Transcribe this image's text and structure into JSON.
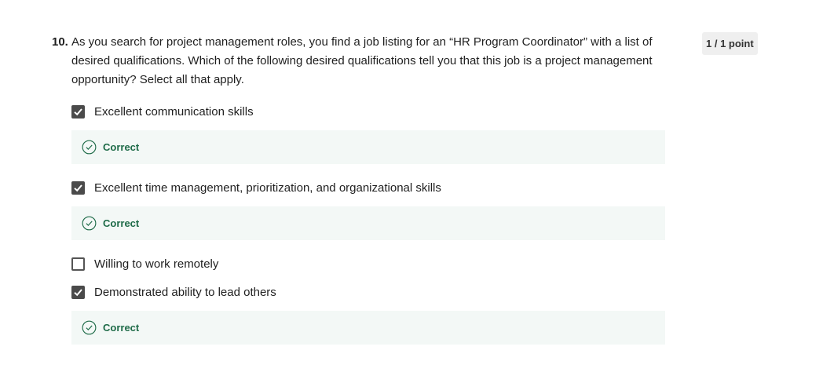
{
  "question": {
    "number": "10.",
    "text": "As you search for project management roles, you find a job listing for an “HR Program Coordinator” with a list of desired qualifications. Which of the following desired qualifications tell you that this job is a project management opportunity? Select all that apply.",
    "score": "1 / 1 point"
  },
  "options": [
    {
      "label": "Excellent communication skills",
      "checked": true,
      "feedback": "Correct"
    },
    {
      "label": "Excellent time management, prioritization, and organizational skills",
      "checked": true,
      "feedback": "Correct"
    },
    {
      "label": "Willing to work remotely",
      "checked": false
    },
    {
      "label": "Demonstrated ability to lead others",
      "checked": true,
      "feedback": "Correct"
    }
  ],
  "icons": {
    "checkbox_check": "check-icon",
    "feedback": "check-circle-icon"
  },
  "colors": {
    "correct_text": "#1e6b48",
    "correct_background": "#f3f8f6",
    "checkbox_checked": "#4a4a4a"
  }
}
